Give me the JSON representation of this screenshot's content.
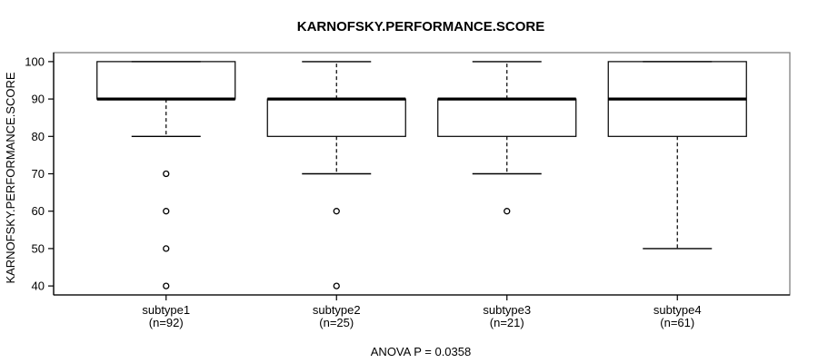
{
  "page": {
    "background": "#ffffff"
  },
  "chart_data": {
    "type": "boxplot",
    "title": "KARNOFSKY.PERFORMANCE.SCORE",
    "ylabel": "KARNOFSKY.PERFORMANCE.SCORE",
    "xlabel": "",
    "footer": "ANOVA P = 0.0358",
    "ylim": [
      40,
      100
    ],
    "yticks": [
      40,
      50,
      60,
      70,
      80,
      90,
      100
    ],
    "grid": false,
    "legend": "none",
    "colors": {
      "background": "#ffffff",
      "frame": "#808080",
      "axis": "#000000",
      "box_border": "#000000",
      "box_fill": "#ffffff",
      "median": "#000000",
      "whisker": "#000000",
      "outlier": "#000000",
      "text": "#000000"
    },
    "groups": [
      {
        "label": "subtype1",
        "sublabel": "(n=92)",
        "whisker_low": 80,
        "q1": 90,
        "median": 90,
        "q3": 100,
        "whisker_high": 100,
        "outliers": [
          70,
          60,
          50,
          40
        ]
      },
      {
        "label": "subtype2",
        "sublabel": "(n=25)",
        "whisker_low": 70,
        "q1": 80,
        "median": 90,
        "q3": 90,
        "whisker_high": 100,
        "outliers": [
          60,
          40
        ]
      },
      {
        "label": "subtype3",
        "sublabel": "(n=21)",
        "whisker_low": 70,
        "q1": 80,
        "median": 90,
        "q3": 90,
        "whisker_high": 100,
        "outliers": [
          60
        ]
      },
      {
        "label": "subtype4",
        "sublabel": "(n=61)",
        "whisker_low": 50,
        "q1": 80,
        "median": 90,
        "q3": 100,
        "whisker_high": 100,
        "outliers": []
      }
    ]
  }
}
